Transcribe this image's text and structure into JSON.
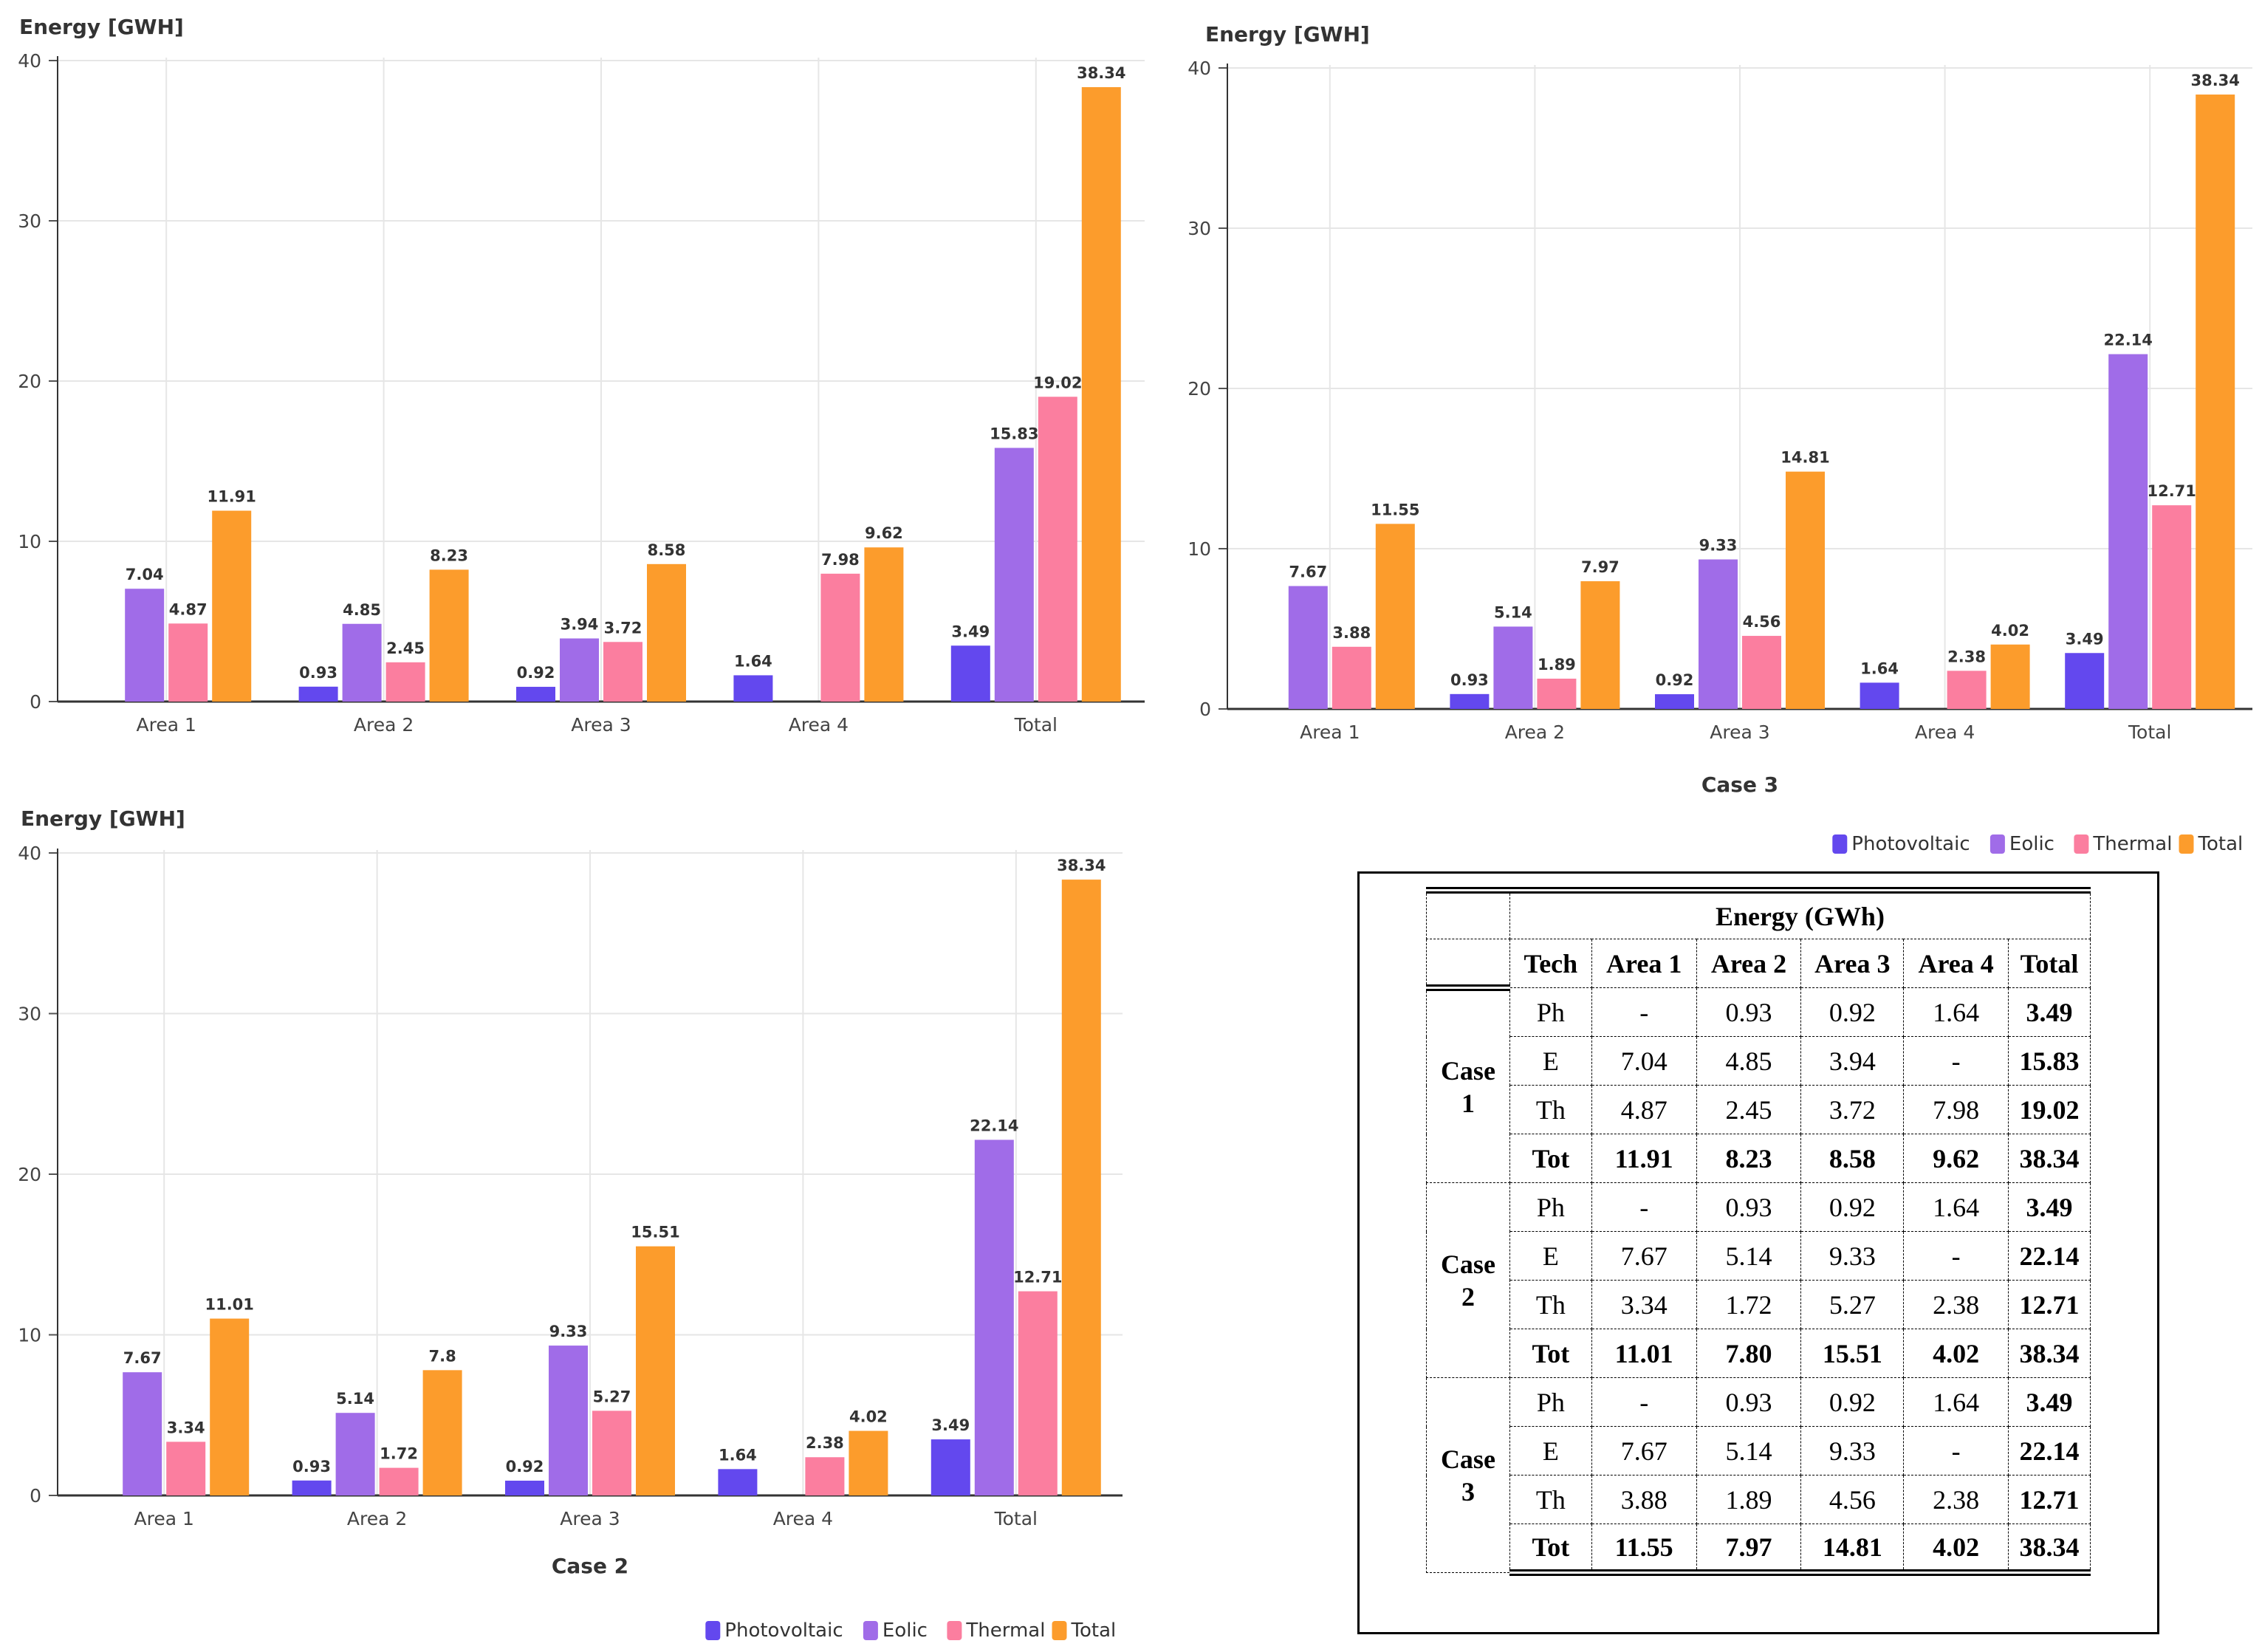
{
  "charts": [
    {
      "id": "case1",
      "ylabel": "Energy [GWH]",
      "caption": "",
      "legend": false
    },
    {
      "id": "case3",
      "ylabel": "Energy [GWH]",
      "caption": "Case 3",
      "legend": true
    },
    {
      "id": "case2",
      "ylabel": "Energy [GWH]",
      "caption": "Case 2",
      "legend": true
    }
  ],
  "colors": {
    "Photovoltaic": "#6348ee",
    "Eolic": "#a06ce8",
    "Thermal": "#fb7e9f",
    "Total": "#fc9c2c"
  },
  "chart_data": [
    {
      "type": "bar",
      "title": "",
      "xlabel": "",
      "ylabel": "Energy [GWH]",
      "ylim": [
        0,
        40
      ],
      "yticks": [
        "0",
        "10",
        "20",
        "30",
        "40"
      ],
      "categories": [
        "Area 1",
        "Area 2",
        "Area 3",
        "Area 4",
        "Total"
      ],
      "series": [
        {
          "name": "Photovoltaic",
          "values": [
            null,
            0.93,
            0.92,
            1.64,
            3.49
          ],
          "labels": [
            "",
            "0.93",
            "0.92",
            "1.64",
            "3.49"
          ]
        },
        {
          "name": "Eolic",
          "values": [
            7.04,
            4.85,
            3.94,
            null,
            15.83
          ],
          "labels": [
            "7.04",
            "4.85",
            "3.94",
            "",
            "15.83"
          ]
        },
        {
          "name": "Thermal",
          "values": [
            4.87,
            2.45,
            3.72,
            7.98,
            19.02
          ],
          "labels": [
            "4.87",
            "2.45",
            "3.72",
            "7.98",
            "19.02"
          ]
        },
        {
          "name": "Total",
          "values": [
            11.91,
            8.23,
            8.58,
            9.62,
            38.34
          ],
          "labels": [
            "11.91",
            "8.23",
            "8.58",
            "9.62",
            "38.34"
          ]
        }
      ]
    },
    {
      "type": "bar",
      "title": "Case 3",
      "xlabel": "Case 3",
      "ylabel": "Energy [GWH]",
      "ylim": [
        0,
        40
      ],
      "yticks": [
        "0",
        "10",
        "20",
        "30",
        "40"
      ],
      "categories": [
        "Area 1",
        "Area 2",
        "Area 3",
        "Area 4",
        "Total"
      ],
      "series": [
        {
          "name": "Photovoltaic",
          "values": [
            null,
            0.93,
            0.92,
            1.64,
            3.49
          ],
          "labels": [
            "",
            "0.93",
            "0.92",
            "1.64",
            "3.49"
          ]
        },
        {
          "name": "Eolic",
          "values": [
            7.67,
            5.14,
            9.33,
            null,
            22.14
          ],
          "labels": [
            "7.67",
            "5.14",
            "9.33",
            "",
            "22.14"
          ]
        },
        {
          "name": "Thermal",
          "values": [
            3.88,
            1.89,
            4.56,
            2.38,
            12.71
          ],
          "labels": [
            "3.88",
            "1.89",
            "4.56",
            "2.38",
            "12.71"
          ]
        },
        {
          "name": "Total",
          "values": [
            11.55,
            7.97,
            14.81,
            4.02,
            38.34
          ],
          "labels": [
            "11.55",
            "7.97",
            "14.81",
            "4.02",
            "38.34"
          ]
        }
      ],
      "legend_position": "bottom-right"
    },
    {
      "type": "bar",
      "title": "Case 2",
      "xlabel": "Case 2",
      "ylabel": "Energy [GWH]",
      "ylim": [
        0,
        40
      ],
      "yticks": [
        "0",
        "10",
        "20",
        "30",
        "40"
      ],
      "categories": [
        "Area 1",
        "Area 2",
        "Area 3",
        "Area 4",
        "Total"
      ],
      "series": [
        {
          "name": "Photovoltaic",
          "values": [
            null,
            0.93,
            0.92,
            1.64,
            3.49
          ],
          "labels": [
            "",
            "0.93",
            "0.92",
            "1.64",
            "3.49"
          ]
        },
        {
          "name": "Eolic",
          "values": [
            7.67,
            5.14,
            9.33,
            null,
            22.14
          ],
          "labels": [
            "7.67",
            "5.14",
            "9.33",
            "",
            "22.14"
          ]
        },
        {
          "name": "Thermal",
          "values": [
            3.34,
            1.72,
            5.27,
            2.38,
            12.71
          ],
          "labels": [
            "3.34",
            "1.72",
            "5.27",
            "2.38",
            "12.71"
          ]
        },
        {
          "name": "Total",
          "values": [
            11.01,
            7.8,
            15.51,
            4.02,
            38.34
          ],
          "labels": [
            "11.01",
            "7.8",
            "15.51",
            "4.02",
            "38.34"
          ]
        }
      ],
      "legend_position": "bottom-right"
    }
  ],
  "table": {
    "title": "Energy (GWh)",
    "headers": [
      "Tech",
      "Area 1",
      "Area 2",
      "Area 3",
      "Area 4",
      "Total"
    ],
    "cases": [
      {
        "case_line1": "Case",
        "case_line2": "1",
        "rows": [
          [
            "Ph",
            "-",
            "0.93",
            "0.92",
            "1.64",
            "3.49"
          ],
          [
            "E",
            "7.04",
            "4.85",
            "3.94",
            "-",
            "15.83"
          ],
          [
            "Th",
            "4.87",
            "2.45",
            "3.72",
            "7.98",
            "19.02"
          ],
          [
            "Tot",
            "11.91",
            "8.23",
            "8.58",
            "9.62",
            "38.34"
          ]
        ]
      },
      {
        "case_line1": "Case",
        "case_line2": "2",
        "rows": [
          [
            "Ph",
            "-",
            "0.93",
            "0.92",
            "1.64",
            "3.49"
          ],
          [
            "E",
            "7.67",
            "5.14",
            "9.33",
            "-",
            "22.14"
          ],
          [
            "Th",
            "3.34",
            "1.72",
            "5.27",
            "2.38",
            "12.71"
          ],
          [
            "Tot",
            "11.01",
            "7.80",
            "15.51",
            "4.02",
            "38.34"
          ]
        ]
      },
      {
        "case_line1": "Case",
        "case_line2": "3",
        "rows": [
          [
            "Ph",
            "-",
            "0.93",
            "0.92",
            "1.64",
            "3.49"
          ],
          [
            "E",
            "7.67",
            "5.14",
            "9.33",
            "-",
            "22.14"
          ],
          [
            "Th",
            "3.88",
            "1.89",
            "4.56",
            "2.38",
            "12.71"
          ],
          [
            "Tot",
            "11.55",
            "7.97",
            "14.81",
            "4.02",
            "38.34"
          ]
        ]
      }
    ]
  }
}
